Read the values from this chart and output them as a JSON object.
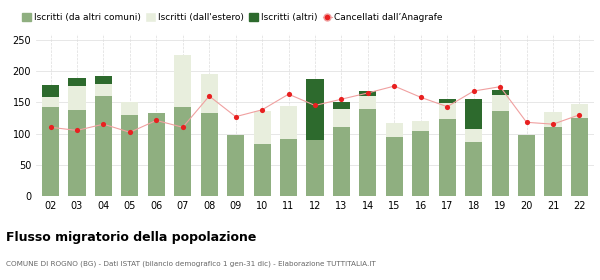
{
  "years": [
    "02",
    "03",
    "04",
    "05",
    "06",
    "07",
    "08",
    "09",
    "10",
    "11",
    "12",
    "13",
    "14",
    "15",
    "16",
    "17",
    "18",
    "19",
    "20",
    "21",
    "22"
  ],
  "iscritti_comuni": [
    143,
    138,
    160,
    130,
    133,
    143,
    133,
    97,
    83,
    91,
    90,
    110,
    140,
    95,
    104,
    123,
    86,
    136,
    98,
    110,
    125
  ],
  "iscritti_estero": [
    16,
    38,
    20,
    20,
    0,
    83,
    62,
    0,
    53,
    53,
    0,
    30,
    20,
    22,
    16,
    26,
    22,
    26,
    0,
    25,
    22
  ],
  "iscritti_altri": [
    18,
    13,
    12,
    0,
    0,
    0,
    0,
    0,
    0,
    0,
    98,
    10,
    8,
    0,
    0,
    7,
    48,
    8,
    0,
    0,
    0
  ],
  "cancellati": [
    110,
    105,
    115,
    102,
    121,
    110,
    160,
    127,
    138,
    163,
    145,
    155,
    165,
    176,
    158,
    143,
    168,
    175,
    118,
    115,
    130
  ],
  "color_comuni": "#8faf80",
  "color_estero": "#e8eedd",
  "color_altri": "#2d6a2d",
  "color_cancellati": "#e82020",
  "color_cancellati_line": "#f0a0a0",
  "background": "#ffffff",
  "grid_color": "#dddddd",
  "title": "Flusso migratorio della popolazione",
  "subtitle": "COMUNE DI ROGNO (BG) - Dati ISTAT (bilancio demografico 1 gen-31 dic) - Elaborazione TUTTITALIA.IT",
  "legend_labels": [
    "Iscritti (da altri comuni)",
    "Iscritti (dall'estero)",
    "Iscritti (altri)",
    "Cancellati dall’Anagrafe"
  ],
  "ylim": [
    0,
    260
  ],
  "yticks": [
    0,
    50,
    100,
    150,
    200,
    250
  ]
}
